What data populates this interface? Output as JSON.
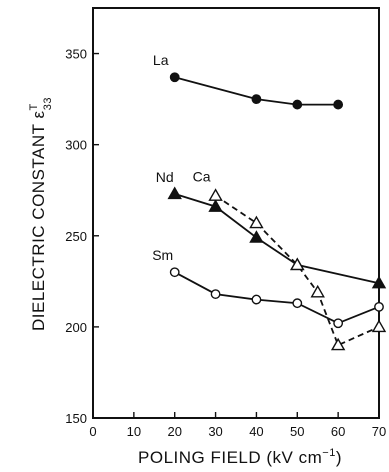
{
  "chart_data": {
    "type": "line",
    "title": "",
    "xlabel": "POLING FIELD (kV cm",
    "xlabel_sup": "−1",
    "xlabel_tail": ")",
    "ylabel": "DIELECTRIC CONSTANT ε",
    "ylabel_sup": "T",
    "ylabel_sub": "33",
    "xlim": [
      0,
      70
    ],
    "ylim": [
      150,
      375
    ],
    "x_ticks": [
      0,
      10,
      20,
      30,
      40,
      50,
      60,
      70
    ],
    "y_ticks": [
      150,
      200,
      250,
      300,
      350
    ],
    "legend": "inline labels",
    "grid": false,
    "series": [
      {
        "name": "La",
        "marker": "filled-circle",
        "line": "solid",
        "x": [
          20,
          40,
          50,
          60
        ],
        "y": [
          337,
          325,
          322,
          322
        ]
      },
      {
        "name": "Nd",
        "marker": "filled-triangle",
        "line": "solid",
        "x": [
          20,
          30,
          40,
          50,
          70
        ],
        "y": [
          273,
          266,
          249,
          234,
          224
        ]
      },
      {
        "name": "Ca",
        "marker": "open-triangle",
        "line": "dashed",
        "x": [
          30,
          40,
          50,
          55,
          60,
          70
        ],
        "y": [
          272,
          257,
          234,
          219,
          190,
          200
        ]
      },
      {
        "name": "Sm",
        "marker": "open-circle",
        "line": "solid",
        "x": [
          20,
          30,
          40,
          50,
          60,
          70
        ],
        "y": [
          230,
          218,
          215,
          213,
          202,
          211
        ]
      }
    ]
  }
}
